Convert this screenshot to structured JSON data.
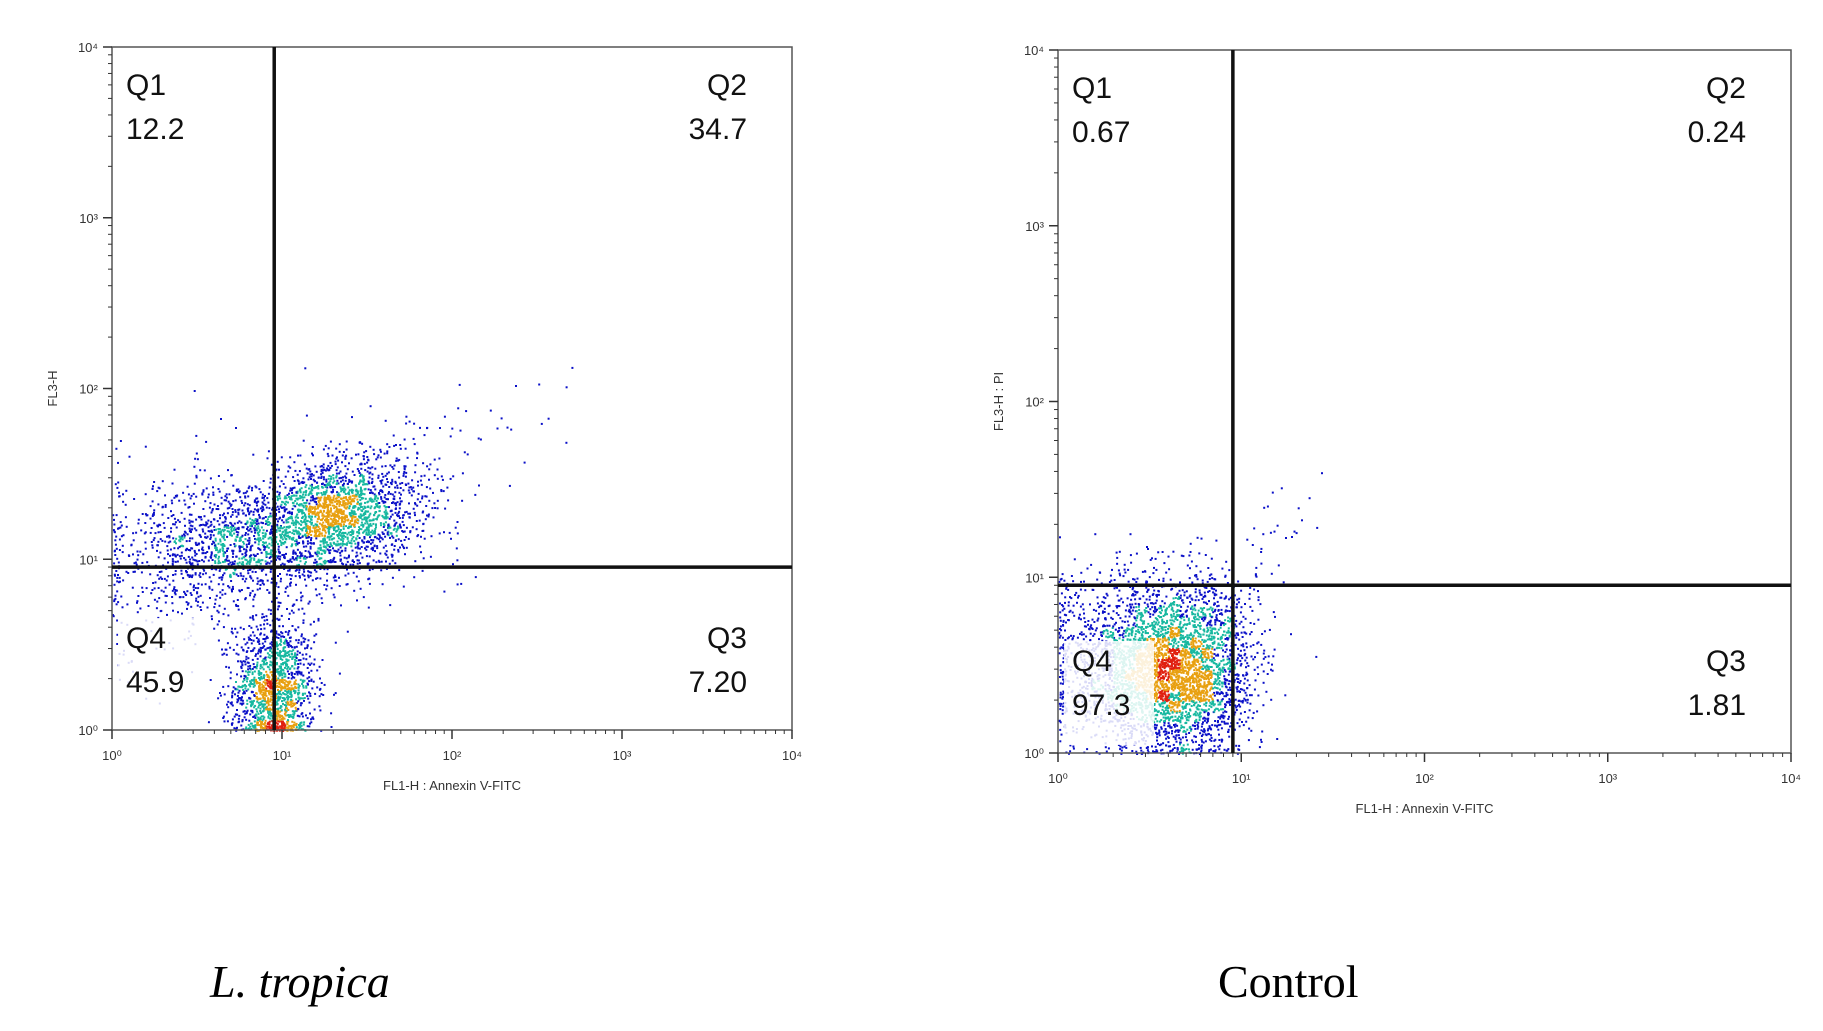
{
  "chart_data": [
    {
      "type": "scatter",
      "subtype": "flow-cytometry-density-dot-plot",
      "caption": "L. tropica",
      "xlabel": "FL1-H : Annexin V-FITC",
      "ylabel": "FL3-H",
      "x_scale": "log",
      "y_scale": "log",
      "xlim": [
        1,
        10000
      ],
      "ylim": [
        1,
        10000
      ],
      "x_ticks": [
        "10⁰",
        "10¹",
        "10²",
        "10³",
        "10⁴"
      ],
      "y_ticks": [
        "10⁰",
        "10¹",
        "10²",
        "10³",
        "10⁴"
      ],
      "gate": {
        "x": 9,
        "y": 9
      },
      "quadrants": [
        {
          "name": "Q1",
          "value": "12.2"
        },
        {
          "name": "Q2",
          "value": "34.7"
        },
        {
          "name": "Q3",
          "value": "7.20"
        },
        {
          "name": "Q4",
          "value": "45.9"
        }
      ],
      "clusters": [
        {
          "cx": 0.95,
          "cy": 0.25,
          "sx": 0.12,
          "sy": 0.2,
          "n": 1400
        },
        {
          "cx": 0.8,
          "cy": 1.1,
          "sx": 0.28,
          "sy": 0.18,
          "n": 1200
        },
        {
          "cx": 1.3,
          "cy": 1.25,
          "sx": 0.2,
          "sy": 0.15,
          "n": 1400
        },
        {
          "cx": 1.55,
          "cy": 1.35,
          "sx": 0.25,
          "sy": 0.18,
          "n": 500
        },
        {
          "cx": 0.3,
          "cy": 1.0,
          "sx": 0.25,
          "sy": 0.3,
          "n": 350
        },
        {
          "cx": 2.1,
          "cy": 1.8,
          "sx": 0.3,
          "sy": 0.15,
          "n": 35
        }
      ],
      "colors": {
        "low": "#0a10c8",
        "mid": "#17b8a0",
        "high": "#e8a010",
        "peak": "#e02010",
        "gate": "#111111"
      }
    },
    {
      "type": "scatter",
      "subtype": "flow-cytometry-density-dot-plot",
      "caption": "Control",
      "xlabel": "FL1-H : Annexin V-FITC",
      "ylabel": "FL3-H : PI",
      "x_scale": "log",
      "y_scale": "log",
      "xlim": [
        1,
        10000
      ],
      "ylim": [
        1,
        10000
      ],
      "x_ticks": [
        "10⁰",
        "10¹",
        "10²",
        "10³",
        "10⁴"
      ],
      "y_ticks": [
        "10⁰",
        "10¹",
        "10²",
        "10³",
        "10⁴"
      ],
      "gate": {
        "x": 9,
        "y": 9
      },
      "quadrants": [
        {
          "name": "Q1",
          "value": "0.67"
        },
        {
          "name": "Q2",
          "value": "0.24"
        },
        {
          "name": "Q3",
          "value": "1.81"
        },
        {
          "name": "Q4",
          "value": "97.3"
        }
      ],
      "clusters": [
        {
          "cx": 0.65,
          "cy": 0.45,
          "sx": 0.2,
          "sy": 0.22,
          "n": 2600
        },
        {
          "cx": 0.35,
          "cy": 0.55,
          "sx": 0.25,
          "sy": 0.25,
          "n": 1200
        },
        {
          "cx": 0.8,
          "cy": 0.85,
          "sx": 0.15,
          "sy": 0.15,
          "n": 200
        },
        {
          "cx": 1.2,
          "cy": 1.2,
          "sx": 0.12,
          "sy": 0.15,
          "n": 25
        }
      ],
      "colors": {
        "low": "#0a10c8",
        "mid": "#17b8a0",
        "high": "#e8a010",
        "peak": "#e02010",
        "gate": "#111111"
      }
    }
  ]
}
